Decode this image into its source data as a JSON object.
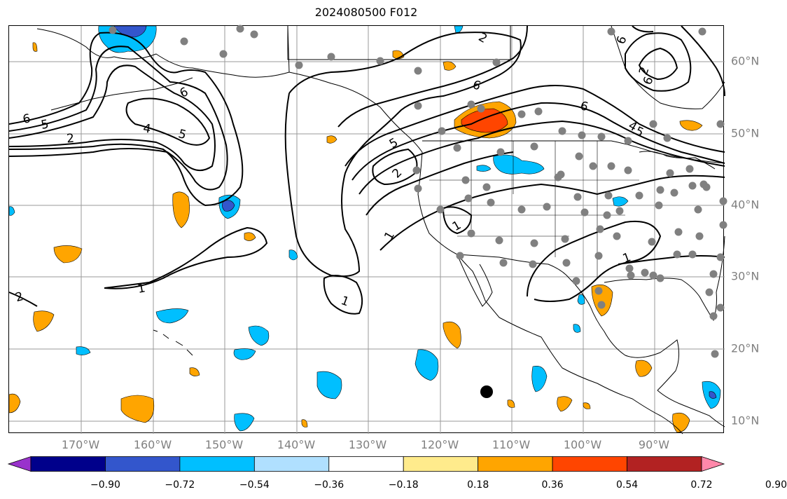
{
  "title": "2024080500 F012",
  "colors": {
    "land_line": "#000000",
    "grid": "#9a9a9a",
    "contour": "#000000",
    "station": "#808080",
    "storm_marker": "#000000",
    "fill_neg_strong": "#3356cc",
    "fill_neg_med": "#00bfff",
    "fill_pos_med": "#ffa500",
    "fill_pos_strong": "#ff4500"
  },
  "longitude_labels": [
    "170°W",
    "160°W",
    "150°W",
    "140°W",
    "130°W",
    "120°W",
    "110°W",
    "100°W",
    "90°W"
  ],
  "latitude_labels": [
    "60°N",
    "50°N",
    "40°N",
    "30°N",
    "20°N",
    "10°N"
  ],
  "contour_labels": [
    "6",
    "5",
    "2",
    "4",
    "5",
    "6",
    "2",
    "1",
    "1",
    "1",
    "2",
    "5",
    "6",
    "1",
    "2",
    "6",
    "2",
    "6",
    "4",
    "5",
    "1",
    "6"
  ],
  "colorbar": {
    "colors": [
      "#9932cc",
      "#00008b",
      "#3356cc",
      "#00bfff",
      "#b0e0ff",
      "#ffffff",
      "#ffeb8c",
      "#ffa500",
      "#ff4500",
      "#b22222",
      "#ff88aa"
    ],
    "ticks": [
      "−0.90",
      "−0.72",
      "−0.54",
      "−0.36",
      "−0.18",
      "0.18",
      "0.36",
      "0.54",
      "0.72",
      "0.90"
    ]
  }
}
